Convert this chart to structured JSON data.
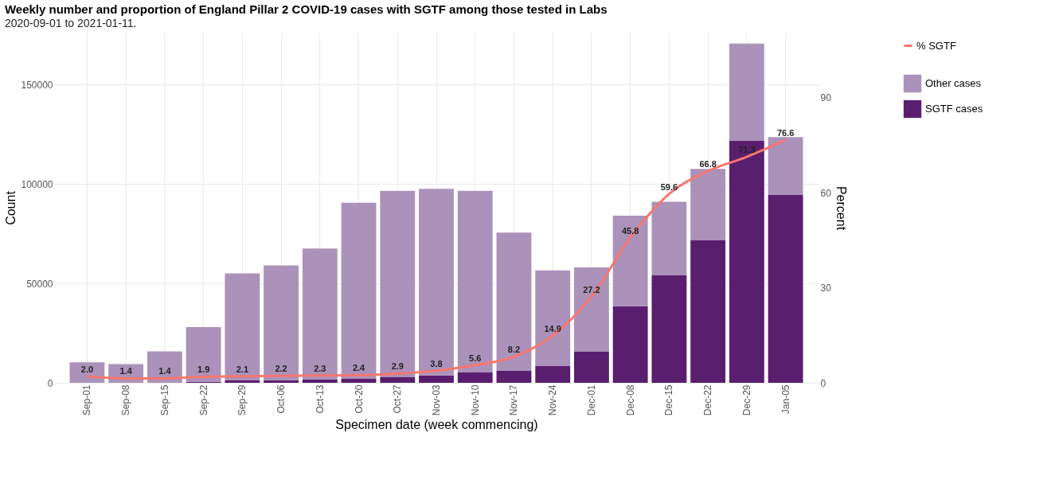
{
  "chart_data": {
    "type": "bar",
    "title": "Weekly number and proportion of England Pillar 2 COVID-19 cases with SGTF among those tested in Labs",
    "subtitle": "2020-09-01 to 2021-01-11.",
    "xlabel": "Specimen date (week commencing)",
    "ylabel": "Count",
    "y2label": "Percent",
    "categories": [
      "Sep-01",
      "Sep-08",
      "Sep-15",
      "Sep-22",
      "Sep-29",
      "Oct-06",
      "Oct-13",
      "Oct-20",
      "Oct-27",
      "Nov-03",
      "Nov-10",
      "Nov-17",
      "Nov-24",
      "Dec-01",
      "Dec-08",
      "Dec-15",
      "Dec-22",
      "Dec-29",
      "Jan-05"
    ],
    "stacked": true,
    "series": [
      {
        "name": "SGTF cases",
        "color": "#5a1e6e",
        "values": [
          null,
          null,
          null,
          500,
          1200,
          1300,
          1600,
          2200,
          2800,
          3700,
          5400,
          6200,
          8400,
          15800,
          38500,
          54200,
          71800,
          121600,
          94600
        ]
      },
      {
        "name": "Other cases",
        "color": "#ab92ba",
        "values": [
          10300,
          9400,
          15800,
          27500,
          53800,
          57700,
          65900,
          88300,
          93700,
          93800,
          91100,
          69300,
          48100,
          42200,
          45500,
          36800,
          35700,
          48900,
          28900
        ]
      },
      {
        "name": "% SGTF",
        "type": "line",
        "axis": "y2",
        "color": "#f8766d",
        "values": [
          2.0,
          1.4,
          1.4,
          1.9,
          2.1,
          2.2,
          2.3,
          2.4,
          2.9,
          3.8,
          5.6,
          8.2,
          14.9,
          27.2,
          45.8,
          59.6,
          66.8,
          71.3,
          76.6
        ],
        "value_labels": [
          "2.0",
          "1.4",
          "1.4",
          "1.9",
          "2.1",
          "2.2",
          "2.3",
          "2.4",
          "2.9",
          "3.8",
          "5.6",
          "8.2",
          "14.9",
          "27.2",
          "45.8",
          "59.6",
          "66.8",
          "71.3",
          "76.6"
        ]
      }
    ],
    "ylim": [
      0,
      176000
    ],
    "yticks": [
      0,
      50000,
      100000,
      150000
    ],
    "y2lim": [
      0,
      110.5
    ],
    "y2ticks": [
      0,
      30,
      60,
      90
    ],
    "grid": true,
    "legend": "right"
  }
}
